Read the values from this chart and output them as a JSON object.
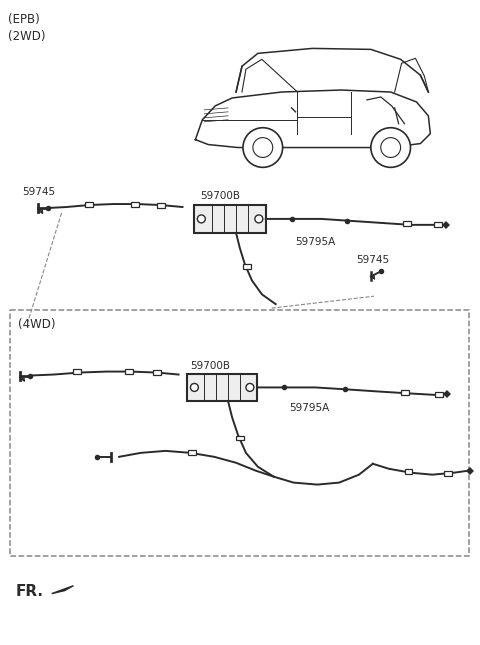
{
  "bg_color": "#ffffff",
  "line_color": "#2a2a2a",
  "gray_line": "#888888",
  "epb_text": "(EPB)\n(2WD)",
  "fwd_text": "(4WD)",
  "fr_text": "FR.",
  "lbl_59745_L_2wd": "59745",
  "lbl_59700B_2wd": "59700B",
  "lbl_59795A_2wd": "59795A",
  "lbl_59745_R_2wd": "59745",
  "lbl_59700B_4wd": "59700B",
  "lbl_59795A_4wd": "59795A",
  "figsize": [
    4.8,
    6.45
  ],
  "dpi": 100
}
